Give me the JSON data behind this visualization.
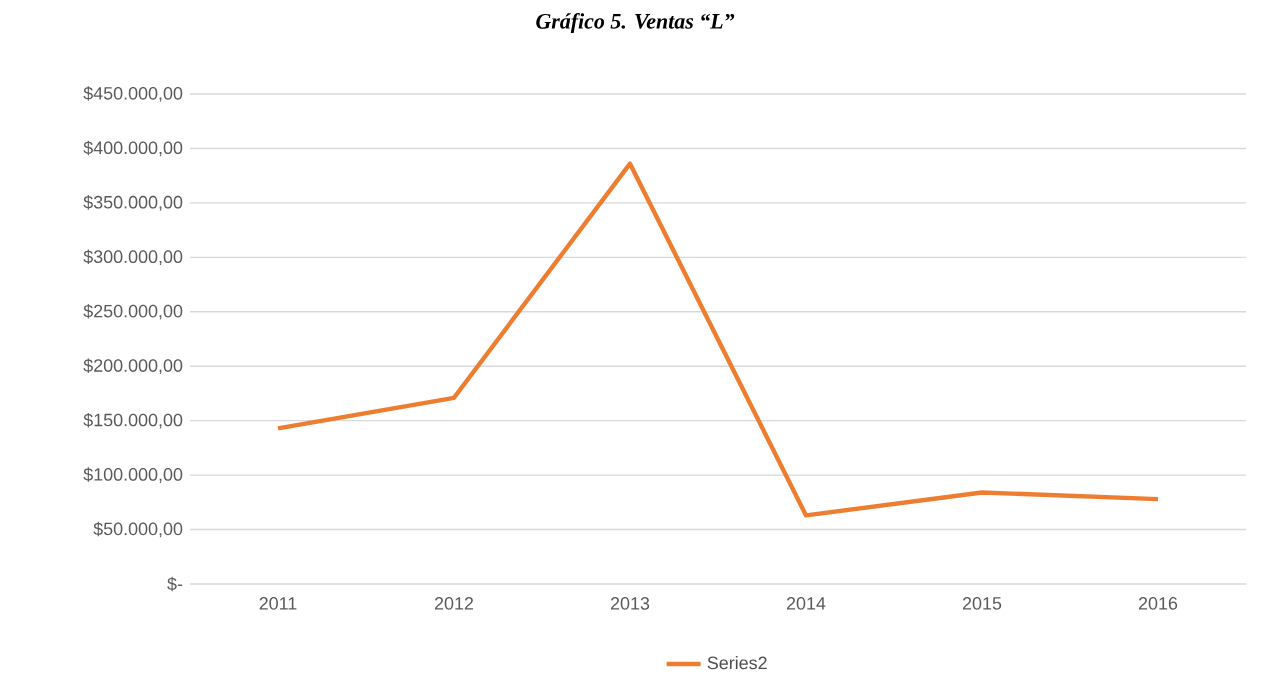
{
  "chart_data": {
    "type": "line",
    "title": "Gráfico 5. Ventas “L”",
    "categories": [
      "2011",
      "2012",
      "2013",
      "2014",
      "2015",
      "2016"
    ],
    "series": [
      {
        "name": "Series2",
        "color": "#ed7d31",
        "values": [
          143000,
          171000,
          386000,
          63000,
          84000,
          78000
        ]
      }
    ],
    "ylim": [
      0,
      450000
    ],
    "yticks": [
      {
        "value": 0,
        "label": "$-"
      },
      {
        "value": 50000,
        "label": "$50.000,00"
      },
      {
        "value": 100000,
        "label": "$100.000,00"
      },
      {
        "value": 150000,
        "label": "$150.000,00"
      },
      {
        "value": 200000,
        "label": "$200.000,00"
      },
      {
        "value": 250000,
        "label": "$250.000,00"
      },
      {
        "value": 300000,
        "label": "$300.000,00"
      },
      {
        "value": 350000,
        "label": "$350.000,00"
      },
      {
        "value": 400000,
        "label": "$400.000,00"
      },
      {
        "value": 450000,
        "label": "$450.000,00"
      }
    ],
    "grid": "y",
    "legend": "bottom"
  }
}
